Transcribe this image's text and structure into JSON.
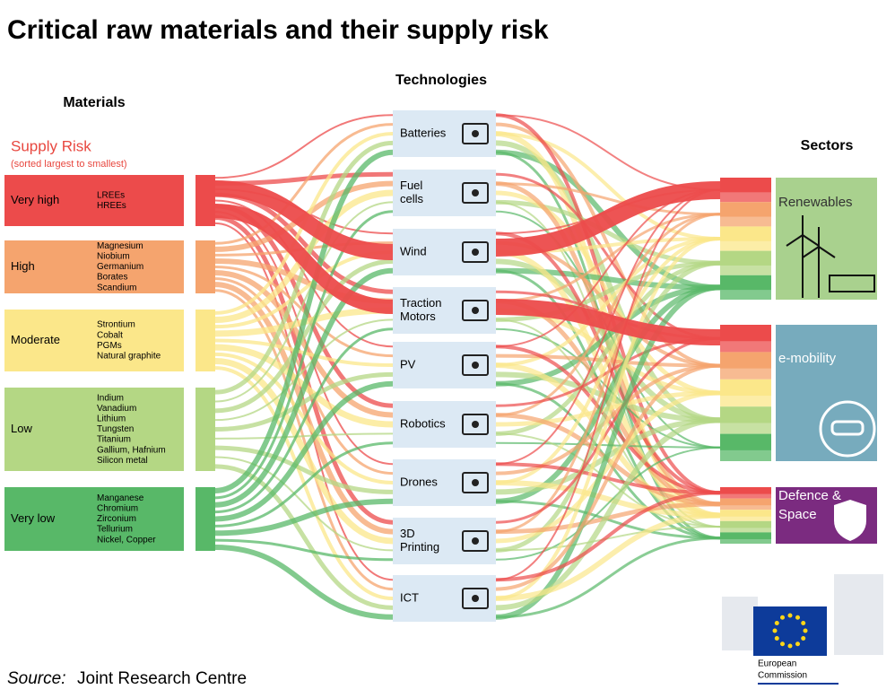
{
  "title": "Critical raw materials and their supply risk",
  "headings": {
    "materials": "Materials",
    "technologies": "Technologies",
    "sectors": "Sectors"
  },
  "supply_risk": {
    "label": "Supply Risk",
    "note": "(sorted largest to smallest)"
  },
  "risk_levels": [
    {
      "level": "Very high",
      "materials": [
        "LREEs",
        "HREEs"
      ]
    },
    {
      "level": "High",
      "materials": [
        "Magnesium",
        "Niobium",
        "Germanium",
        "Borates",
        "Scandium"
      ]
    },
    {
      "level": "Moderate",
      "materials": [
        "Strontium",
        "Cobalt",
        "PGMs",
        "Natural graphite"
      ]
    },
    {
      "level": "Low",
      "materials": [
        "Indium",
        "Vanadium",
        "Lithium",
        "Tungsten",
        "Titanium",
        "Gallium, Hafnium",
        "Silicon metal"
      ]
    },
    {
      "level": "Very low",
      "materials": [
        "Manganese",
        "Chromium",
        "Zirconium",
        "Tellurium",
        "Nickel, Copper"
      ]
    }
  ],
  "technologies": [
    [
      "Batteries"
    ],
    [
      "Fuel",
      "cells"
    ],
    [
      "Wind"
    ],
    [
      "Traction",
      "Motors"
    ],
    [
      "PV"
    ],
    [
      "Robotics"
    ],
    [
      "Drones"
    ],
    [
      "3D",
      "Printing"
    ],
    [
      "ICT"
    ]
  ],
  "sectors": [
    [
      "Renewables"
    ],
    [
      "e-mobility"
    ],
    [
      "Defence &",
      "Space"
    ]
  ],
  "source": {
    "label": "Source:",
    "text": "Joint Research Centre"
  },
  "logo": [
    "European",
    "Commission"
  ]
}
